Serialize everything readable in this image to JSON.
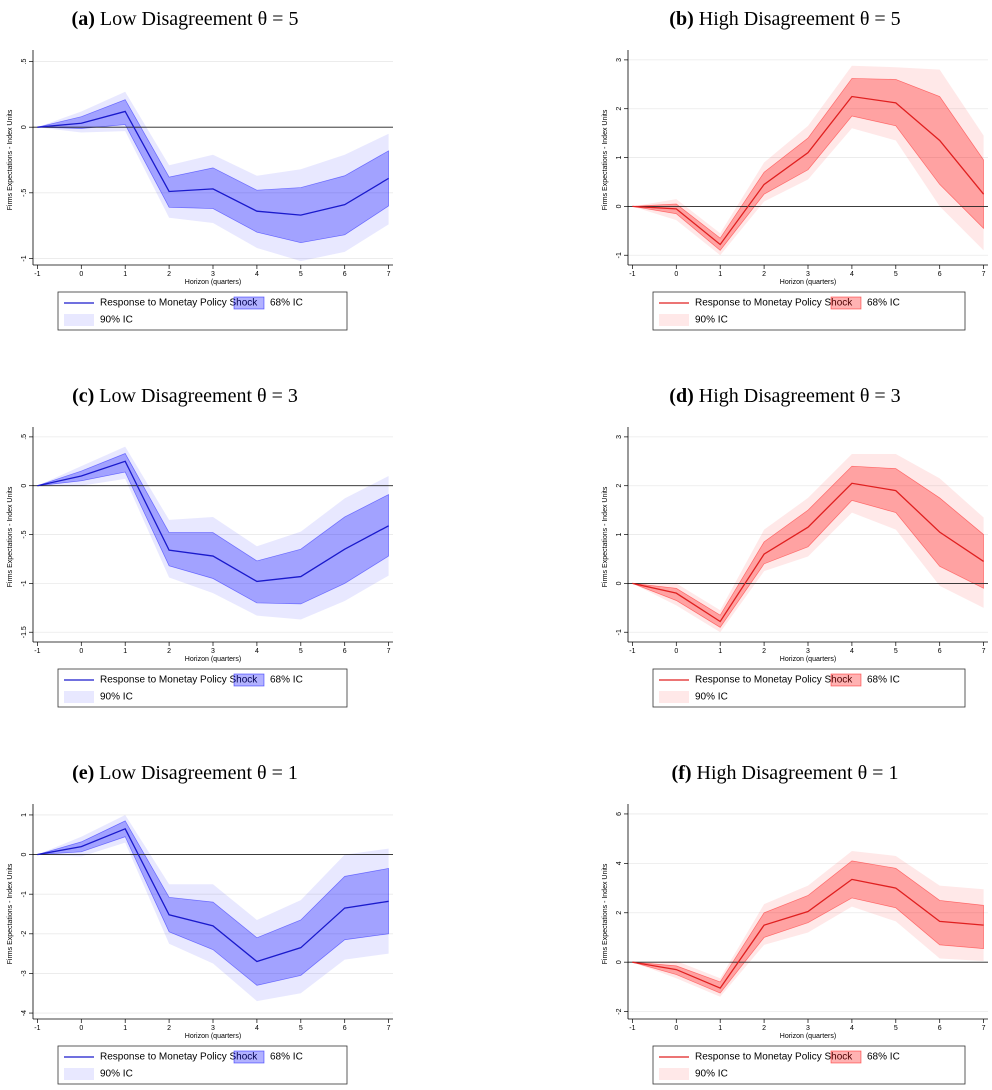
{
  "chart_data": [
    {
      "type": "line",
      "label": "(a)",
      "title": "Low Disagreement θ = 5",
      "ylabel": "Firms Expectations - Index Units",
      "xlabel": "Horizon (quarters)",
      "x": [
        -1,
        0,
        1,
        2,
        3,
        4,
        5,
        6,
        7
      ],
      "xlim": [
        -1.1,
        7.1
      ],
      "xticks": [
        -1,
        0,
        1,
        2,
        3,
        4,
        5,
        6,
        7
      ],
      "ylim": [
        -1.05,
        0.55
      ],
      "yticks": [
        {
          "value": 0.5,
          "label": ".5"
        },
        0,
        {
          "value": -0.5,
          "label": "-.5"
        },
        -1
      ],
      "grid": true,
      "hline": 0,
      "series": [
        {
          "name": "Response to Monetay Policy Shock",
          "color": "#1a1acc",
          "values": [
            0,
            0.03,
            0.12,
            -0.49,
            -0.47,
            -0.64,
            -0.67,
            -0.59,
            -0.39
          ]
        }
      ],
      "bands": [
        {
          "name": "68% IC",
          "color": "#0000ff",
          "lower": [
            0,
            -0.01,
            0.02,
            -0.61,
            -0.62,
            -0.8,
            -0.88,
            -0.82,
            -0.6
          ],
          "upper": [
            0,
            0.08,
            0.21,
            -0.38,
            -0.31,
            -0.48,
            -0.46,
            -0.37,
            -0.18
          ]
        },
        {
          "name": "90% IC",
          "color": "#0000ff",
          "lower": [
            0,
            -0.04,
            -0.03,
            -0.69,
            -0.73,
            -0.92,
            -1.02,
            -0.95,
            -0.74
          ],
          "upper": [
            0,
            0.12,
            0.27,
            -0.29,
            -0.21,
            -0.37,
            -0.32,
            -0.21,
            -0.05
          ]
        }
      ]
    },
    {
      "type": "line",
      "label": "(b)",
      "title": "High Disagreement θ = 5",
      "ylabel": "Firms Expectations - Index Units",
      "xlabel": "Horizon (quarters)",
      "x": [
        -1,
        0,
        1,
        2,
        3,
        4,
        5,
        6,
        7
      ],
      "xlim": [
        -1.1,
        7.1
      ],
      "xticks": [
        -1,
        0,
        1,
        2,
        3,
        4,
        5,
        6,
        7
      ],
      "ylim": [
        -1.2,
        3.1
      ],
      "yticks": [
        3,
        2,
        1,
        0,
        -1
      ],
      "grid": true,
      "hline": 0,
      "series": [
        {
          "name": "Response to Monetay Policy Shock",
          "color": "#e02020",
          "values": [
            0,
            -0.05,
            -0.78,
            0.45,
            1.1,
            2.25,
            2.12,
            1.35,
            0.25
          ]
        }
      ],
      "bands": [
        {
          "name": "68% IC",
          "color": "#ff0000",
          "lower": [
            0,
            -0.15,
            -0.9,
            0.25,
            0.75,
            1.85,
            1.65,
            0.45,
            -0.45
          ],
          "upper": [
            0,
            0.05,
            -0.65,
            0.7,
            1.4,
            2.62,
            2.6,
            2.25,
            0.95
          ]
        },
        {
          "name": "90% IC",
          "color": "#ff0000",
          "lower": [
            0,
            -0.28,
            -1.0,
            0.1,
            0.55,
            1.6,
            1.35,
            0.0,
            -0.9
          ],
          "upper": [
            0,
            0.15,
            -0.55,
            0.9,
            1.65,
            2.88,
            2.85,
            2.8,
            1.45
          ]
        }
      ]
    },
    {
      "type": "line",
      "label": "(c)",
      "title": "Low Disagreement θ = 3",
      "ylabel": "Firms Expectations - Index Units",
      "xlabel": "Horizon (quarters)",
      "x": [
        -1,
        0,
        1,
        2,
        3,
        4,
        5,
        6,
        7
      ],
      "xlim": [
        -1.1,
        7.1
      ],
      "xticks": [
        -1,
        0,
        1,
        2,
        3,
        4,
        5,
        6,
        7
      ],
      "ylim": [
        -1.6,
        0.55
      ],
      "yticks": [
        {
          "value": 0.5,
          "label": ".5"
        },
        0,
        {
          "value": -0.5,
          "label": "-.5"
        },
        -1,
        -1.5
      ],
      "grid": true,
      "hline": 0,
      "series": [
        {
          "name": "Response to Monetay Policy Shock",
          "color": "#1a1acc",
          "values": [
            0,
            0.1,
            0.25,
            -0.66,
            -0.72,
            -0.98,
            -0.93,
            -0.65,
            -0.41
          ]
        }
      ],
      "bands": [
        {
          "name": "68% IC",
          "color": "#0000ff",
          "lower": [
            0,
            0.05,
            0.14,
            -0.82,
            -0.95,
            -1.2,
            -1.21,
            -1.0,
            -0.72
          ],
          "upper": [
            0,
            0.15,
            0.33,
            -0.48,
            -0.48,
            -0.77,
            -0.65,
            -0.32,
            -0.09
          ]
        },
        {
          "name": "90% IC",
          "color": "#0000ff",
          "lower": [
            0,
            0.0,
            0.07,
            -0.94,
            -1.1,
            -1.33,
            -1.37,
            -1.18,
            -0.92
          ],
          "upper": [
            0,
            0.2,
            0.4,
            -0.35,
            -0.32,
            -0.62,
            -0.47,
            -0.13,
            0.1
          ]
        }
      ]
    },
    {
      "type": "line",
      "label": "(d)",
      "title": "High Disagreement θ = 3",
      "ylabel": "Firms Expectations - Index Units",
      "xlabel": "Horizon (quarters)",
      "x": [
        -1,
        0,
        1,
        2,
        3,
        4,
        5,
        6,
        7
      ],
      "xlim": [
        -1.1,
        7.1
      ],
      "xticks": [
        -1,
        0,
        1,
        2,
        3,
        4,
        5,
        6,
        7
      ],
      "ylim": [
        -1.2,
        3.1
      ],
      "yticks": [
        3,
        2,
        1,
        0,
        -1
      ],
      "grid": true,
      "hline": 0,
      "series": [
        {
          "name": "Response to Monetay Policy Shock",
          "color": "#e02020",
          "values": [
            0,
            -0.2,
            -0.78,
            0.6,
            1.15,
            2.05,
            1.9,
            1.05,
            0.45
          ]
        }
      ],
      "bands": [
        {
          "name": "68% IC",
          "color": "#ff0000",
          "lower": [
            0,
            -0.35,
            -0.9,
            0.4,
            0.75,
            1.7,
            1.45,
            0.35,
            -0.1
          ],
          "upper": [
            0,
            -0.1,
            -0.65,
            0.85,
            1.5,
            2.4,
            2.35,
            1.75,
            1.0
          ]
        },
        {
          "name": "90% IC",
          "color": "#ff0000",
          "lower": [
            0,
            -0.45,
            -1.0,
            0.25,
            0.55,
            1.45,
            1.1,
            -0.05,
            -0.5
          ],
          "upper": [
            0,
            0.0,
            -0.55,
            1.1,
            1.75,
            2.65,
            2.65,
            2.15,
            1.35
          ]
        }
      ]
    },
    {
      "type": "line",
      "label": "(e)",
      "title": "Low Disagreement θ = 1",
      "ylabel": "Firms Expectations - Index Units",
      "xlabel": "Horizon (quarters)",
      "x": [
        -1,
        0,
        1,
        2,
        3,
        4,
        5,
        6,
        7
      ],
      "xlim": [
        -1.1,
        7.1
      ],
      "xticks": [
        -1,
        0,
        1,
        2,
        3,
        4,
        5,
        6,
        7
      ],
      "ylim": [
        -4.15,
        1.15
      ],
      "yticks": [
        1,
        0,
        -1,
        -2,
        -3,
        -4
      ],
      "grid": true,
      "hline": 0,
      "series": [
        {
          "name": "Response to Monetay Policy Shock",
          "color": "#1a1acc",
          "values": [
            0,
            0.2,
            0.65,
            -1.52,
            -1.8,
            -2.7,
            -2.35,
            -1.35,
            -1.18
          ]
        }
      ],
      "bands": [
        {
          "name": "68% IC",
          "color": "#0000ff",
          "lower": [
            0,
            0.07,
            0.45,
            -1.95,
            -2.4,
            -3.3,
            -3.05,
            -2.15,
            -2.0
          ],
          "upper": [
            0,
            0.32,
            0.85,
            -1.08,
            -1.2,
            -2.1,
            -1.65,
            -0.55,
            -0.35
          ]
        },
        {
          "name": "90% IC",
          "color": "#0000ff",
          "lower": [
            0,
            -0.05,
            0.3,
            -2.25,
            -2.75,
            -3.7,
            -3.5,
            -2.65,
            -2.5
          ],
          "upper": [
            0,
            0.45,
            1.0,
            -0.75,
            -0.75,
            -1.65,
            -1.15,
            0.0,
            0.15
          ]
        }
      ]
    },
    {
      "type": "line",
      "label": "(f)",
      "title": "High Disagreement θ = 1",
      "ylabel": "Firms Expectations - Index Units",
      "xlabel": "Horizon (quarters)",
      "x": [
        -1,
        0,
        1,
        2,
        3,
        4,
        5,
        6,
        7
      ],
      "xlim": [
        -1.1,
        7.1
      ],
      "xticks": [
        -1,
        0,
        1,
        2,
        3,
        4,
        5,
        6,
        7
      ],
      "ylim": [
        -2.3,
        6.2
      ],
      "yticks": [
        6,
        4,
        2,
        0,
        -2
      ],
      "grid": true,
      "hline": 0,
      "series": [
        {
          "name": "Response to Monetay Policy Shock",
          "color": "#e02020",
          "values": [
            0,
            -0.3,
            -1.05,
            1.5,
            2.05,
            3.35,
            3.0,
            1.65,
            1.5
          ]
        }
      ],
      "bands": [
        {
          "name": "68% IC",
          "color": "#ff0000",
          "lower": [
            0,
            -0.5,
            -1.25,
            1.0,
            1.6,
            2.6,
            2.2,
            0.7,
            0.55
          ],
          "upper": [
            0,
            -0.15,
            -0.8,
            2.0,
            2.7,
            4.1,
            3.8,
            2.5,
            2.3
          ]
        },
        {
          "name": "90% IC",
          "color": "#ff0000",
          "lower": [
            0,
            -0.65,
            -1.4,
            0.7,
            1.2,
            2.25,
            1.65,
            0.15,
            0.05
          ],
          "upper": [
            0,
            0.05,
            -0.65,
            2.35,
            3.1,
            4.5,
            4.3,
            3.1,
            2.95
          ]
        }
      ]
    }
  ]
}
